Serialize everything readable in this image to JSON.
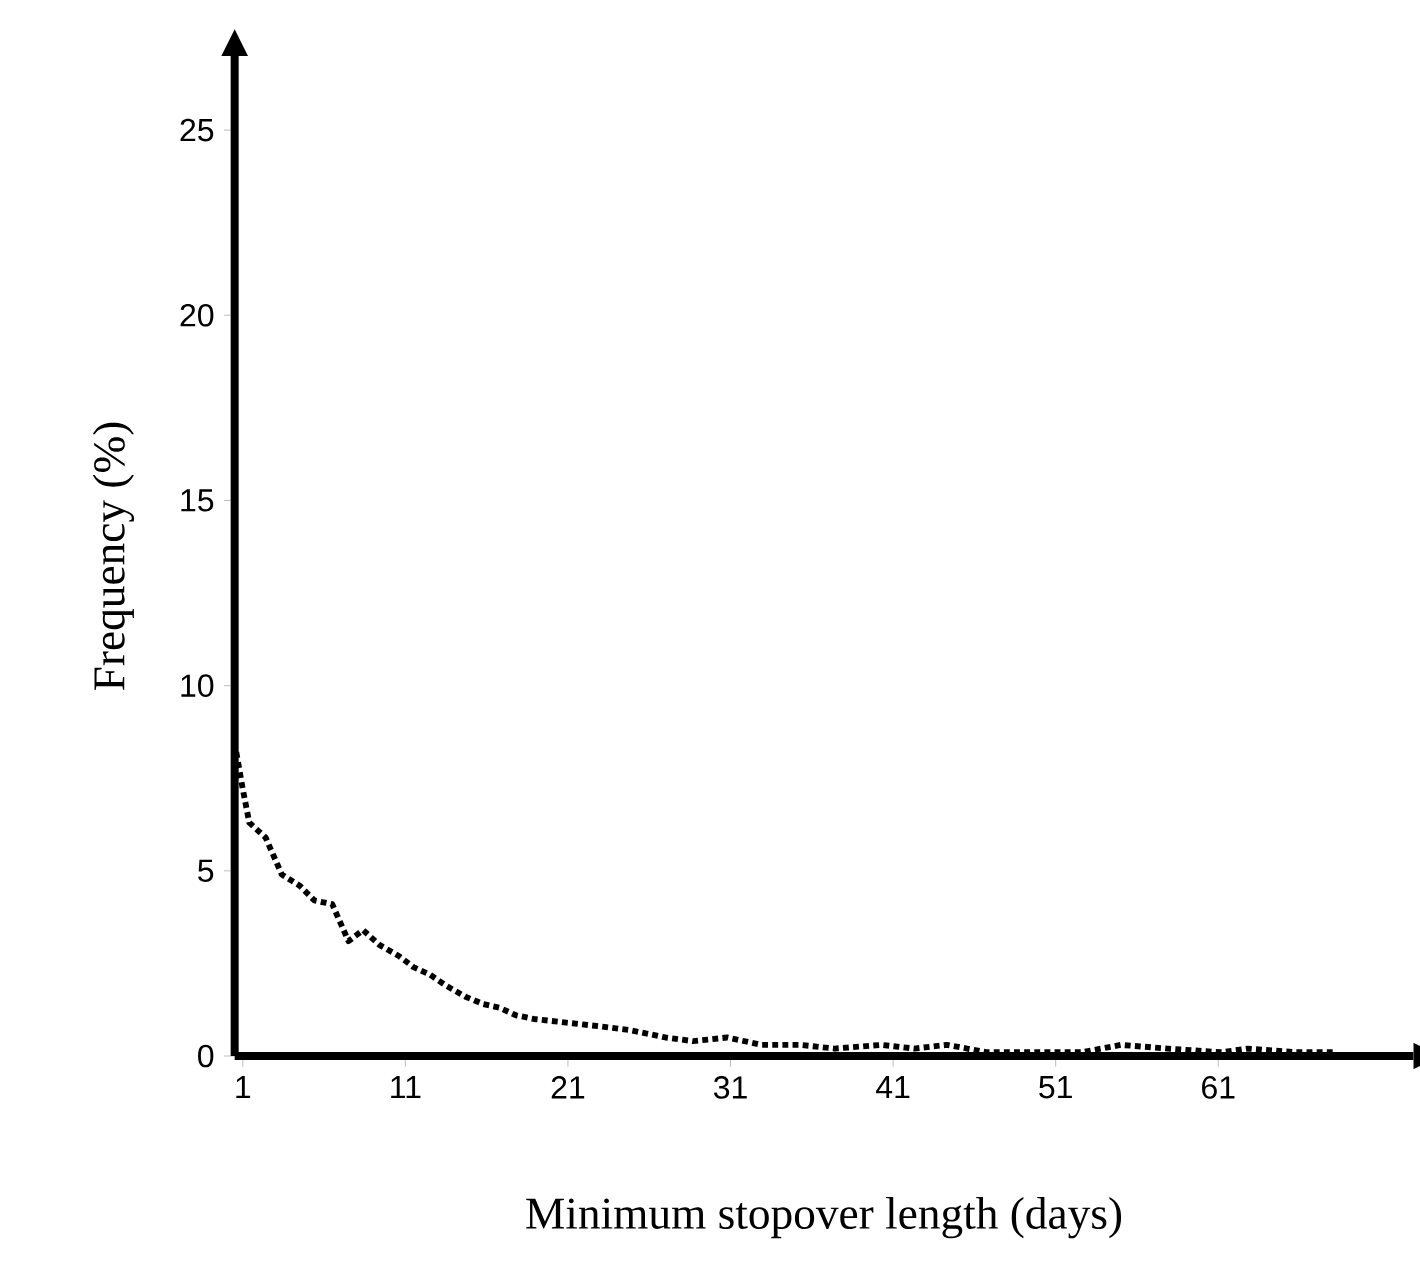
{
  "chart_data": {
    "type": "line",
    "xlabel": "Minimum stopover length (days)",
    "ylabel": "Frequency (%)",
    "xlim": [
      0.5,
      73
    ],
    "ylim": [
      0,
      27
    ],
    "xticks": [
      1,
      11,
      21,
      31,
      41,
      51,
      61
    ],
    "yticks": [
      0,
      5,
      10,
      15,
      20,
      25
    ],
    "series": [
      {
        "color": "#000000",
        "line_style": "dotted",
        "marker": "none",
        "x": [
          0.6,
          1,
          1.4,
          2.4,
          3.4,
          4.5,
          5.4,
          6.5,
          7.1,
          7.5,
          8.4,
          9.4,
          10.6,
          11.5,
          12.5,
          13.5,
          14.7,
          15.8,
          16.8,
          17.8,
          18.9,
          20.9,
          23,
          24.8,
          27,
          28.7,
          30.8,
          32.9,
          35.3,
          37.4,
          40.3,
          42.3,
          44.3,
          46.8,
          49.7,
          52.6,
          55,
          57.9,
          61.2,
          62.8,
          65.8,
          68.3
        ],
        "values": [
          8.2,
          7.2,
          6.3,
          5.9,
          4.9,
          4.6,
          4.2,
          4.1,
          3.5,
          3.1,
          3.4,
          3.0,
          2.7,
          2.4,
          2.2,
          1.9,
          1.6,
          1.4,
          1.3,
          1.1,
          1.0,
          0.9,
          0.8,
          0.7,
          0.5,
          0.4,
          0.5,
          0.3,
          0.3,
          0.2,
          0.3,
          0.2,
          0.3,
          0.1,
          0.1,
          0.1,
          0.3,
          0.2,
          0.1,
          0.2,
          0.1,
          0.1
        ]
      }
    ]
  }
}
